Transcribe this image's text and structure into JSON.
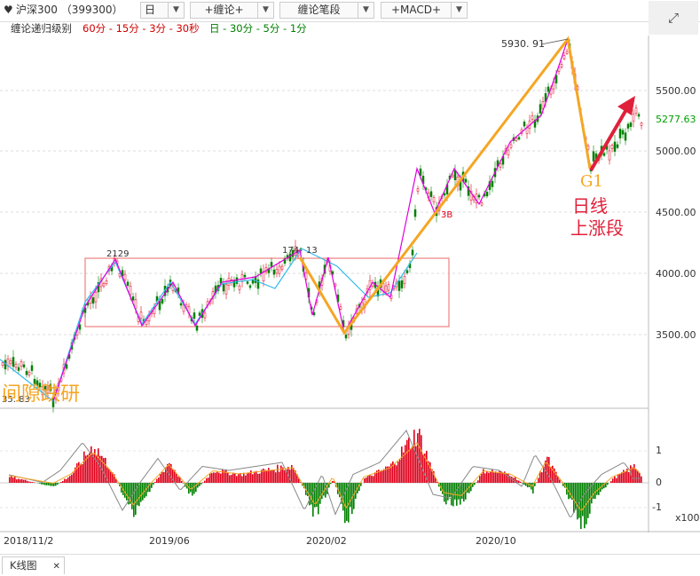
{
  "toolbar": {
    "symbol": "沪深300 （399300）",
    "period": "日",
    "chanlun": "+缠论+",
    "chanlun_bi": "缠论笔段",
    "macd": "+MACD+",
    "fullscreen_icon": "expand-icon"
  },
  "levels": {
    "title": "缠论递归级别",
    "red_levels": "60分 - 15分 - 3分 - 30秒",
    "green_levels": "日 - 30分 - 5分 - 1分"
  },
  "price_axis": {
    "ticks": [
      "5500.00",
      "5000.00",
      "4500.00",
      "4000.00",
      "3500.00"
    ],
    "last_price": "5277.63",
    "last_price_color": "#00a000"
  },
  "annotations": {
    "high_label": "5930. 91",
    "label_2129": "2129",
    "label_174": "174",
    "label_13": "13",
    "label_3b": "3B",
    "low_label": "35. 83",
    "g1": "G1",
    "daily_up_line1": "日线",
    "daily_up_line2": "上涨段",
    "gap_text": "间隙跌研"
  },
  "macd_axis": {
    "ticks": [
      "1",
      "0",
      "-1"
    ],
    "unit": "x100"
  },
  "date_axis": [
    "2018/11/2",
    "2019/06",
    "2020/02",
    "2020/10"
  ],
  "bottom_tab": {
    "label": "K线图",
    "close": "✕"
  },
  "colors": {
    "up": "#e0001b",
    "down": "#008000",
    "bi_line": "#f5a623",
    "seg_line": "#e000e0",
    "cyan_line": "#33bbee",
    "box": "#f08080",
    "arrow": "#e0203a"
  }
}
